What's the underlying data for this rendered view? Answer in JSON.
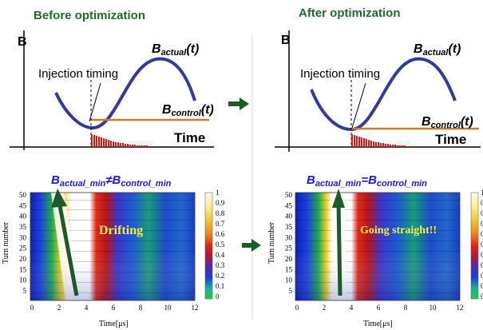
{
  "left": {
    "heading": "Before optimization",
    "axis_y": "B",
    "axis_x": "Time",
    "b_actual": {
      "main": "B",
      "sub": "actual",
      "tail": "(t)"
    },
    "b_control": {
      "main": "B",
      "sub": "control",
      "tail": "(t)"
    },
    "injection_label": "Injection timing",
    "relation": {
      "a_main": "B",
      "a_sub": "actual_min",
      "op": "≠",
      "b_main": "B",
      "b_sub": "control_min"
    },
    "map_annotation": "Drifting"
  },
  "right": {
    "heading": "After optimization",
    "axis_y": "B",
    "axis_x": "Time",
    "b_actual": {
      "main": "B",
      "sub": "actual",
      "tail": "(t)"
    },
    "b_control": {
      "main": "B",
      "sub": "control",
      "tail": "(t)"
    },
    "injection_label": "Injection timing",
    "relation": {
      "a_main": "B",
      "a_sub": "actual_min",
      "op": "=",
      "b_main": "B",
      "b_sub": "control_min"
    },
    "map_annotation": "Going straight!!"
  },
  "heatmap": {
    "y_label": "Turn number",
    "x_label": "Time[μs]",
    "y_ticks": [
      "50",
      "45",
      "40",
      "35",
      "30",
      "25",
      "20",
      "15",
      "10",
      "5"
    ],
    "x_ticks": [
      "0",
      "2",
      "4",
      "6",
      "8",
      "10",
      "12"
    ],
    "colorbar_ticks": [
      "1",
      "0.9",
      "0.8",
      "0.7",
      "0.6",
      "0.5",
      "0.4",
      "0.3",
      "0.2",
      "0.1",
      "0"
    ]
  },
  "colors": {
    "heading": "#1f6b2e",
    "sine": "#343a9a",
    "control": "#d2782c",
    "pulses": "#d31a1a",
    "arrow": "#1d5a2a",
    "relation": "#1a1ad1",
    "annotation": "#f3f040"
  }
}
